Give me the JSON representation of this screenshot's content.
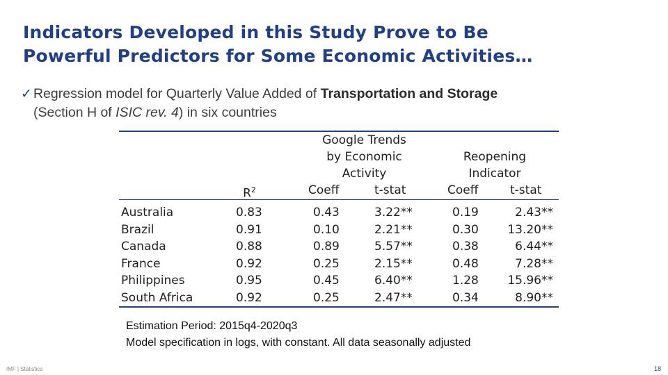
{
  "slide": {
    "title_line1": "Indicators Developed in this Study Prove to Be",
    "title_line2": "Powerful Predictors for Some Economic Activities…",
    "bullet_icon": "checkmark-icon",
    "bullet_pre": "Regression model for Quarterly Value Added of ",
    "bullet_bold": "Transportation and Storage",
    "bullet_mid": "(Section H of ",
    "bullet_italic": "ISIC rev. 4",
    "bullet_post": ") in six countries",
    "accent_color": "#1f3f86"
  },
  "table": {
    "header_r2": "R",
    "header_r2_sup": "2",
    "header_gt_line1": "Google Trends",
    "header_gt_line2": "by Economic",
    "header_gt_line3": "Activity",
    "header_ro_line1": "Reopening",
    "header_ro_line2": "Indicator",
    "sub_coeff_1": "Coeff",
    "sub_tstat_1": "t-stat",
    "sub_coeff_2": "Coeff",
    "sub_tstat_2": "t-stat",
    "rows": [
      {
        "country": "Australia",
        "r2": "0.83",
        "gt_coeff": "0.43",
        "gt_tstat": "3.22**",
        "ro_coeff": "0.19",
        "ro_tstat": "2.43**"
      },
      {
        "country": "Brazil",
        "r2": "0.91",
        "gt_coeff": "0.10",
        "gt_tstat": "2.21**",
        "ro_coeff": "0.30",
        "ro_tstat": "13.20**"
      },
      {
        "country": "Canada",
        "r2": "0.88",
        "gt_coeff": "0.89",
        "gt_tstat": "5.57**",
        "ro_coeff": "0.38",
        "ro_tstat": "6.44**"
      },
      {
        "country": "France",
        "r2": "0.92",
        "gt_coeff": "0.25",
        "gt_tstat": "2.15**",
        "ro_coeff": "0.48",
        "ro_tstat": "7.28**"
      },
      {
        "country": "Philippines",
        "r2": "0.95",
        "gt_coeff": "0.45",
        "gt_tstat": "6.40**",
        "ro_coeff": "1.28",
        "ro_tstat": "15.96**"
      },
      {
        "country": "South Africa",
        "r2": "0.92",
        "gt_coeff": "0.25",
        "gt_tstat": "2.47**",
        "ro_coeff": "0.34",
        "ro_tstat": "8.90**"
      }
    ]
  },
  "notes": {
    "line1": "Estimation Period: 2015q4-2020q3",
    "line2": "Model specification in logs, with constant. All data seasonally adjusted"
  },
  "footer": {
    "left": "IMF | Statistics",
    "page_number": "18"
  }
}
